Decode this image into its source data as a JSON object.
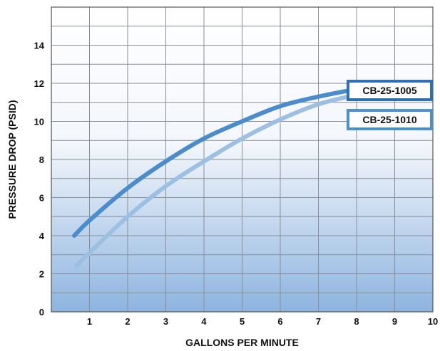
{
  "chart_data": {
    "type": "line",
    "title": "",
    "xlabel": "GALLONS PER MINUTE",
    "ylabel": "PRESSURE DROP (PSID)",
    "xlim": [
      0,
      10
    ],
    "ylim": [
      0,
      16
    ],
    "x_ticks": [
      1,
      2,
      3,
      4,
      5,
      6,
      7,
      8,
      9,
      10
    ],
    "y_ticks": [
      0,
      2,
      4,
      6,
      8,
      10,
      12,
      14
    ],
    "grid": true,
    "series": [
      {
        "name": "CB-25-1005",
        "color": "#4a8ccc",
        "x": [
          0.6,
          1,
          2,
          3,
          4,
          5,
          6,
          7,
          8
        ],
        "y": [
          4.0,
          4.8,
          6.5,
          7.9,
          9.1,
          10.0,
          10.8,
          11.3,
          11.7
        ]
      },
      {
        "name": "CB-25-1010",
        "color": "#9cc0e4",
        "x": [
          0.65,
          1,
          2,
          3,
          4,
          5,
          6,
          7,
          8
        ],
        "y": [
          2.4,
          3.1,
          5.0,
          6.6,
          7.9,
          9.1,
          10.1,
          10.9,
          11.4
        ]
      }
    ]
  }
}
